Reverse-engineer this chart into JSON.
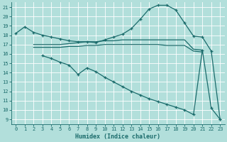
{
  "background_color": "#b2dfdb",
  "grid_color": "#ffffff",
  "line_color": "#1a6b6b",
  "xlabel": "Humidex (Indice chaleur)",
  "xlim": [
    -0.5,
    23.5
  ],
  "ylim": [
    8.5,
    21.5
  ],
  "yticks": [
    9,
    10,
    11,
    12,
    13,
    14,
    15,
    16,
    17,
    18,
    19,
    20,
    21
  ],
  "xticks": [
    0,
    1,
    2,
    3,
    4,
    5,
    6,
    7,
    8,
    9,
    10,
    11,
    12,
    13,
    14,
    15,
    16,
    17,
    18,
    19,
    20,
    21,
    22,
    23
  ],
  "line1_x": [
    0,
    1,
    2,
    3,
    4,
    5,
    6,
    7,
    8,
    9,
    10,
    11,
    12,
    13,
    14,
    15,
    16,
    17,
    18,
    19,
    20,
    21,
    22,
    23
  ],
  "line1_y": [
    18.2,
    18.9,
    18.3,
    18.0,
    17.8,
    17.6,
    17.4,
    17.3,
    17.3,
    17.2,
    17.5,
    17.8,
    18.1,
    18.7,
    19.7,
    20.8,
    21.2,
    21.2,
    20.7,
    19.3,
    17.9,
    17.8,
    16.3,
    9.0
  ],
  "line2_x": [
    2,
    3,
    4,
    5,
    6,
    7,
    8,
    9,
    10,
    11,
    12,
    13,
    14,
    15,
    16,
    17,
    18,
    19,
    20,
    21
  ],
  "line2_y": [
    17.0,
    17.0,
    17.0,
    17.0,
    17.1,
    17.2,
    17.3,
    17.3,
    17.4,
    17.4,
    17.5,
    17.5,
    17.5,
    17.5,
    17.5,
    17.5,
    17.5,
    17.5,
    16.5,
    16.4
  ],
  "line3_x": [
    2,
    3,
    4,
    5,
    6,
    7,
    8,
    9,
    10,
    11,
    12,
    13,
    14,
    15,
    16,
    17,
    18,
    19,
    20,
    21
  ],
  "line3_y": [
    16.7,
    16.7,
    16.7,
    16.7,
    16.8,
    16.8,
    16.9,
    16.9,
    17.0,
    17.0,
    17.0,
    17.0,
    17.0,
    17.0,
    17.0,
    16.9,
    16.9,
    16.9,
    16.3,
    16.2
  ],
  "line4_x": [
    3,
    4,
    5,
    6,
    7,
    8,
    9,
    10,
    11,
    12,
    13,
    14,
    15,
    16,
    17,
    18,
    19,
    20,
    21,
    22,
    23
  ],
  "line4_y": [
    15.8,
    15.5,
    15.1,
    14.8,
    13.8,
    14.5,
    14.1,
    13.5,
    13.0,
    12.5,
    12.0,
    11.6,
    11.2,
    10.9,
    10.6,
    10.3,
    10.0,
    9.5,
    16.4,
    10.2,
    9.0
  ]
}
